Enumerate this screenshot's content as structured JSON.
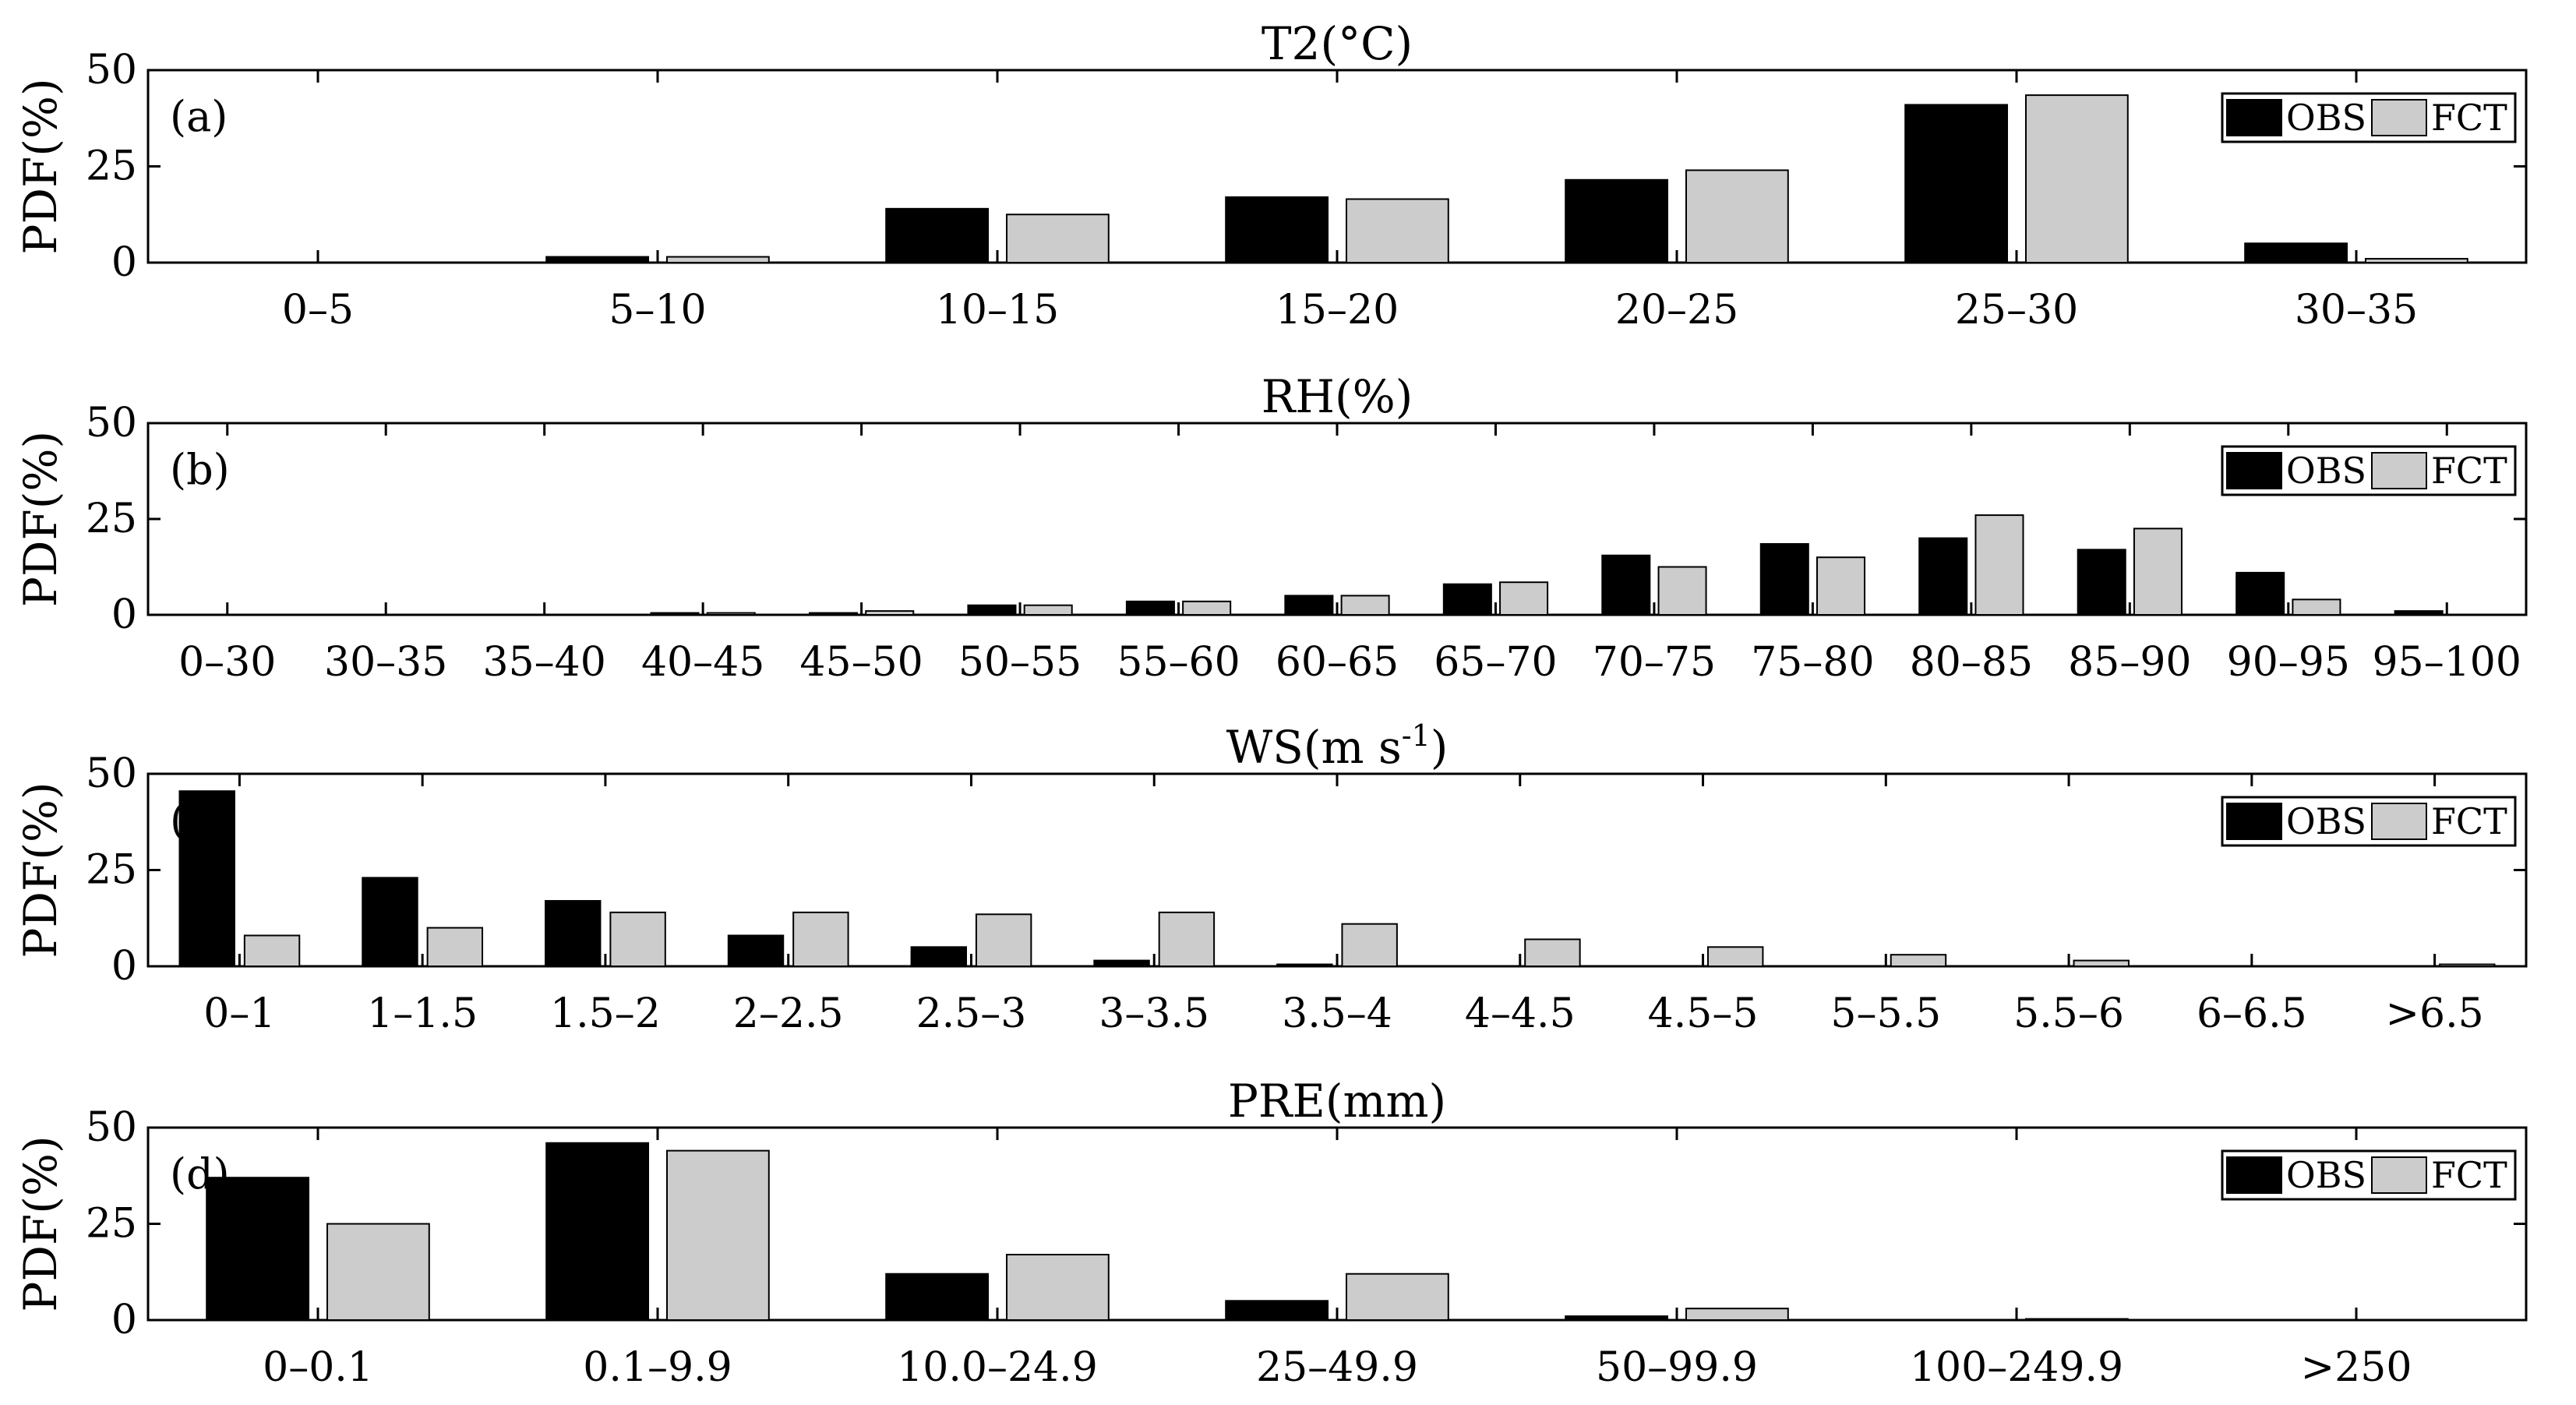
{
  "legend": {
    "labels": [
      "OBS",
      "FCT"
    ],
    "colors": {
      "OBS": "#000000",
      "FCT": "#cccccc"
    }
  },
  "chart_data": [
    {
      "type": "bar",
      "panel": "(a)",
      "title": "T2(°C)",
      "ylabel": "PDF(%)",
      "ylim": [
        0,
        50
      ],
      "yticks": [
        0,
        25,
        50
      ],
      "categories": [
        "0–5",
        "5–10",
        "10–15",
        "15–20",
        "20–25",
        "25–30",
        "30–35"
      ],
      "series": [
        {
          "name": "OBS",
          "values": [
            0,
            1.5,
            14,
            17,
            21.5,
            41,
            5
          ]
        },
        {
          "name": "FCT",
          "values": [
            0,
            1.5,
            12.5,
            16.5,
            24,
            43.5,
            1
          ]
        }
      ],
      "legend_position": "top-right"
    },
    {
      "type": "bar",
      "panel": "(b)",
      "title": "RH(%)",
      "ylabel": "PDF(%)",
      "ylim": [
        0,
        50
      ],
      "yticks": [
        0,
        25,
        50
      ],
      "categories": [
        "0–30",
        "30–35",
        "35–40",
        "40–45",
        "45–50",
        "50–55",
        "55–60",
        "60–65",
        "65–70",
        "70–75",
        "75–80",
        "80–85",
        "85–90",
        "90–95",
        "95–100"
      ],
      "series": [
        {
          "name": "OBS",
          "values": [
            0,
            0,
            0,
            0.5,
            0.5,
            2.5,
            3.5,
            5,
            8,
            15.5,
            18.5,
            20,
            17,
            11,
            1
          ]
        },
        {
          "name": "FCT",
          "values": [
            0,
            0,
            0,
            0.5,
            1,
            2.5,
            3.5,
            5,
            8.5,
            12.5,
            15,
            26,
            22.5,
            4,
            0
          ]
        }
      ],
      "legend_position": "top-right"
    },
    {
      "type": "bar",
      "panel": "(c)",
      "title": "WS(m s",
      "title_sup": "-1",
      "title_end": ")",
      "ylabel": "PDF(%)",
      "ylim": [
        0,
        50
      ],
      "yticks": [
        0,
        25,
        50
      ],
      "categories": [
        "0–1",
        "1–1.5",
        "1.5–2",
        "2–2.5",
        "2.5–3",
        "3–3.5",
        "3.5–4",
        "4–4.5",
        "4.5–5",
        "5–5.5",
        "5.5–6",
        "6–6.5",
        ">6.5"
      ],
      "series": [
        {
          "name": "OBS",
          "values": [
            45.5,
            23,
            17,
            8,
            5,
            1.5,
            0.5,
            0,
            0,
            0,
            0,
            0,
            0
          ]
        },
        {
          "name": "FCT",
          "values": [
            8,
            10,
            14,
            14,
            13.5,
            14,
            11,
            7,
            5,
            3,
            1.5,
            0,
            0.5
          ]
        }
      ],
      "legend_position": "top-right"
    },
    {
      "type": "bar",
      "panel": "(d)",
      "title": "PRE(mm)",
      "ylabel": "PDF(%)",
      "ylim": [
        0,
        50
      ],
      "yticks": [
        0,
        25,
        50
      ],
      "categories": [
        "0–0.1",
        "0.1–9.9",
        "10.0–24.9",
        "25–49.9",
        "50–99.9",
        "100–249.9",
        ">250"
      ],
      "series": [
        {
          "name": "OBS",
          "values": [
            37,
            46,
            12,
            5,
            1,
            0,
            0
          ]
        },
        {
          "name": "FCT",
          "values": [
            25,
            44,
            17,
            12,
            3,
            0.3,
            0
          ]
        }
      ],
      "legend_position": "top-right"
    }
  ]
}
